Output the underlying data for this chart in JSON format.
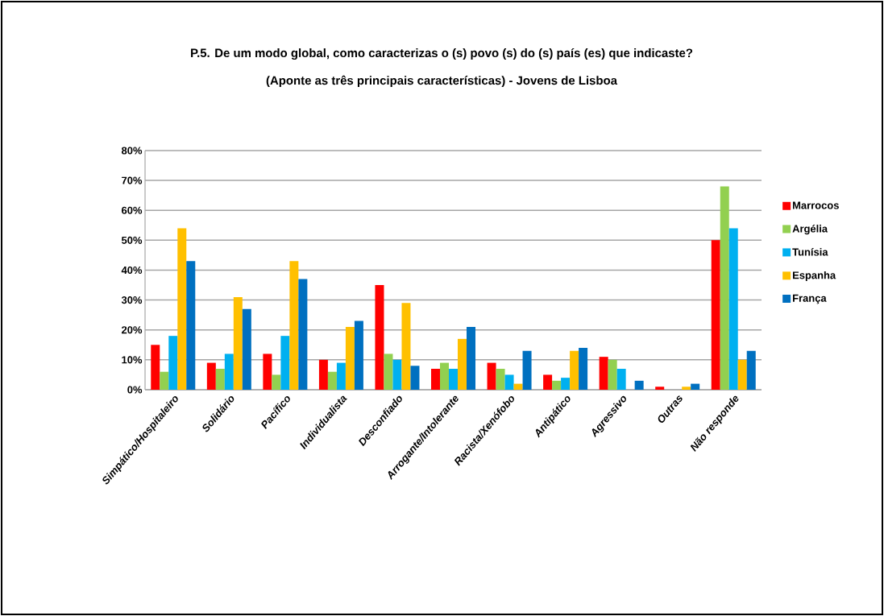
{
  "chart_data": {
    "type": "bar",
    "title": "P.5. De um modo global, como caracterizas o (s) povo (s) do (s) país (es) que indicaste?",
    "subtitle": "(Aponte as três principais características) - Jovens de Lisboa",
    "categories": [
      "Simpático/Hospitaleiro",
      "Solidário",
      "Pacífico",
      "Individualista",
      "Desconfiado",
      "Arrogante/Intolerante",
      "Racista/Xenófobo",
      "Antipático",
      "Agressivo",
      "Outras",
      "Não responde"
    ],
    "series": [
      {
        "name": "Marrocos",
        "color": "#ff0000",
        "values": [
          15,
          9,
          12,
          10,
          35,
          7,
          9,
          5,
          11,
          1,
          50
        ]
      },
      {
        "name": "Argélia",
        "color": "#92d050",
        "values": [
          6,
          7,
          5,
          6,
          12,
          9,
          7,
          3,
          10,
          0,
          68
        ]
      },
      {
        "name": "Tunísia",
        "color": "#00b0f0",
        "values": [
          18,
          12,
          18,
          9,
          10,
          7,
          5,
          4,
          7,
          0,
          54
        ]
      },
      {
        "name": "Espanha",
        "color": "#ffc000",
        "values": [
          54,
          31,
          43,
          21,
          29,
          17,
          2,
          13,
          0,
          1,
          10
        ]
      },
      {
        "name": "França",
        "color": "#0070c0",
        "values": [
          43,
          27,
          37,
          23,
          8,
          21,
          13,
          14,
          3,
          2,
          13
        ]
      }
    ],
    "ylim": [
      0,
      80
    ],
    "yticks": [
      {
        "value": 0,
        "label": "0%"
      },
      {
        "value": 10,
        "label": "10%"
      },
      {
        "value": 20,
        "label": "20%"
      },
      {
        "value": 30,
        "label": "30%"
      },
      {
        "value": 40,
        "label": "40%"
      },
      {
        "value": 50,
        "label": "50%"
      },
      {
        "value": 60,
        "label": "60%"
      },
      {
        "value": 70,
        "label": "70%"
      },
      {
        "value": 80,
        "label": "80%"
      }
    ],
    "grid": "y",
    "legend": "right"
  }
}
